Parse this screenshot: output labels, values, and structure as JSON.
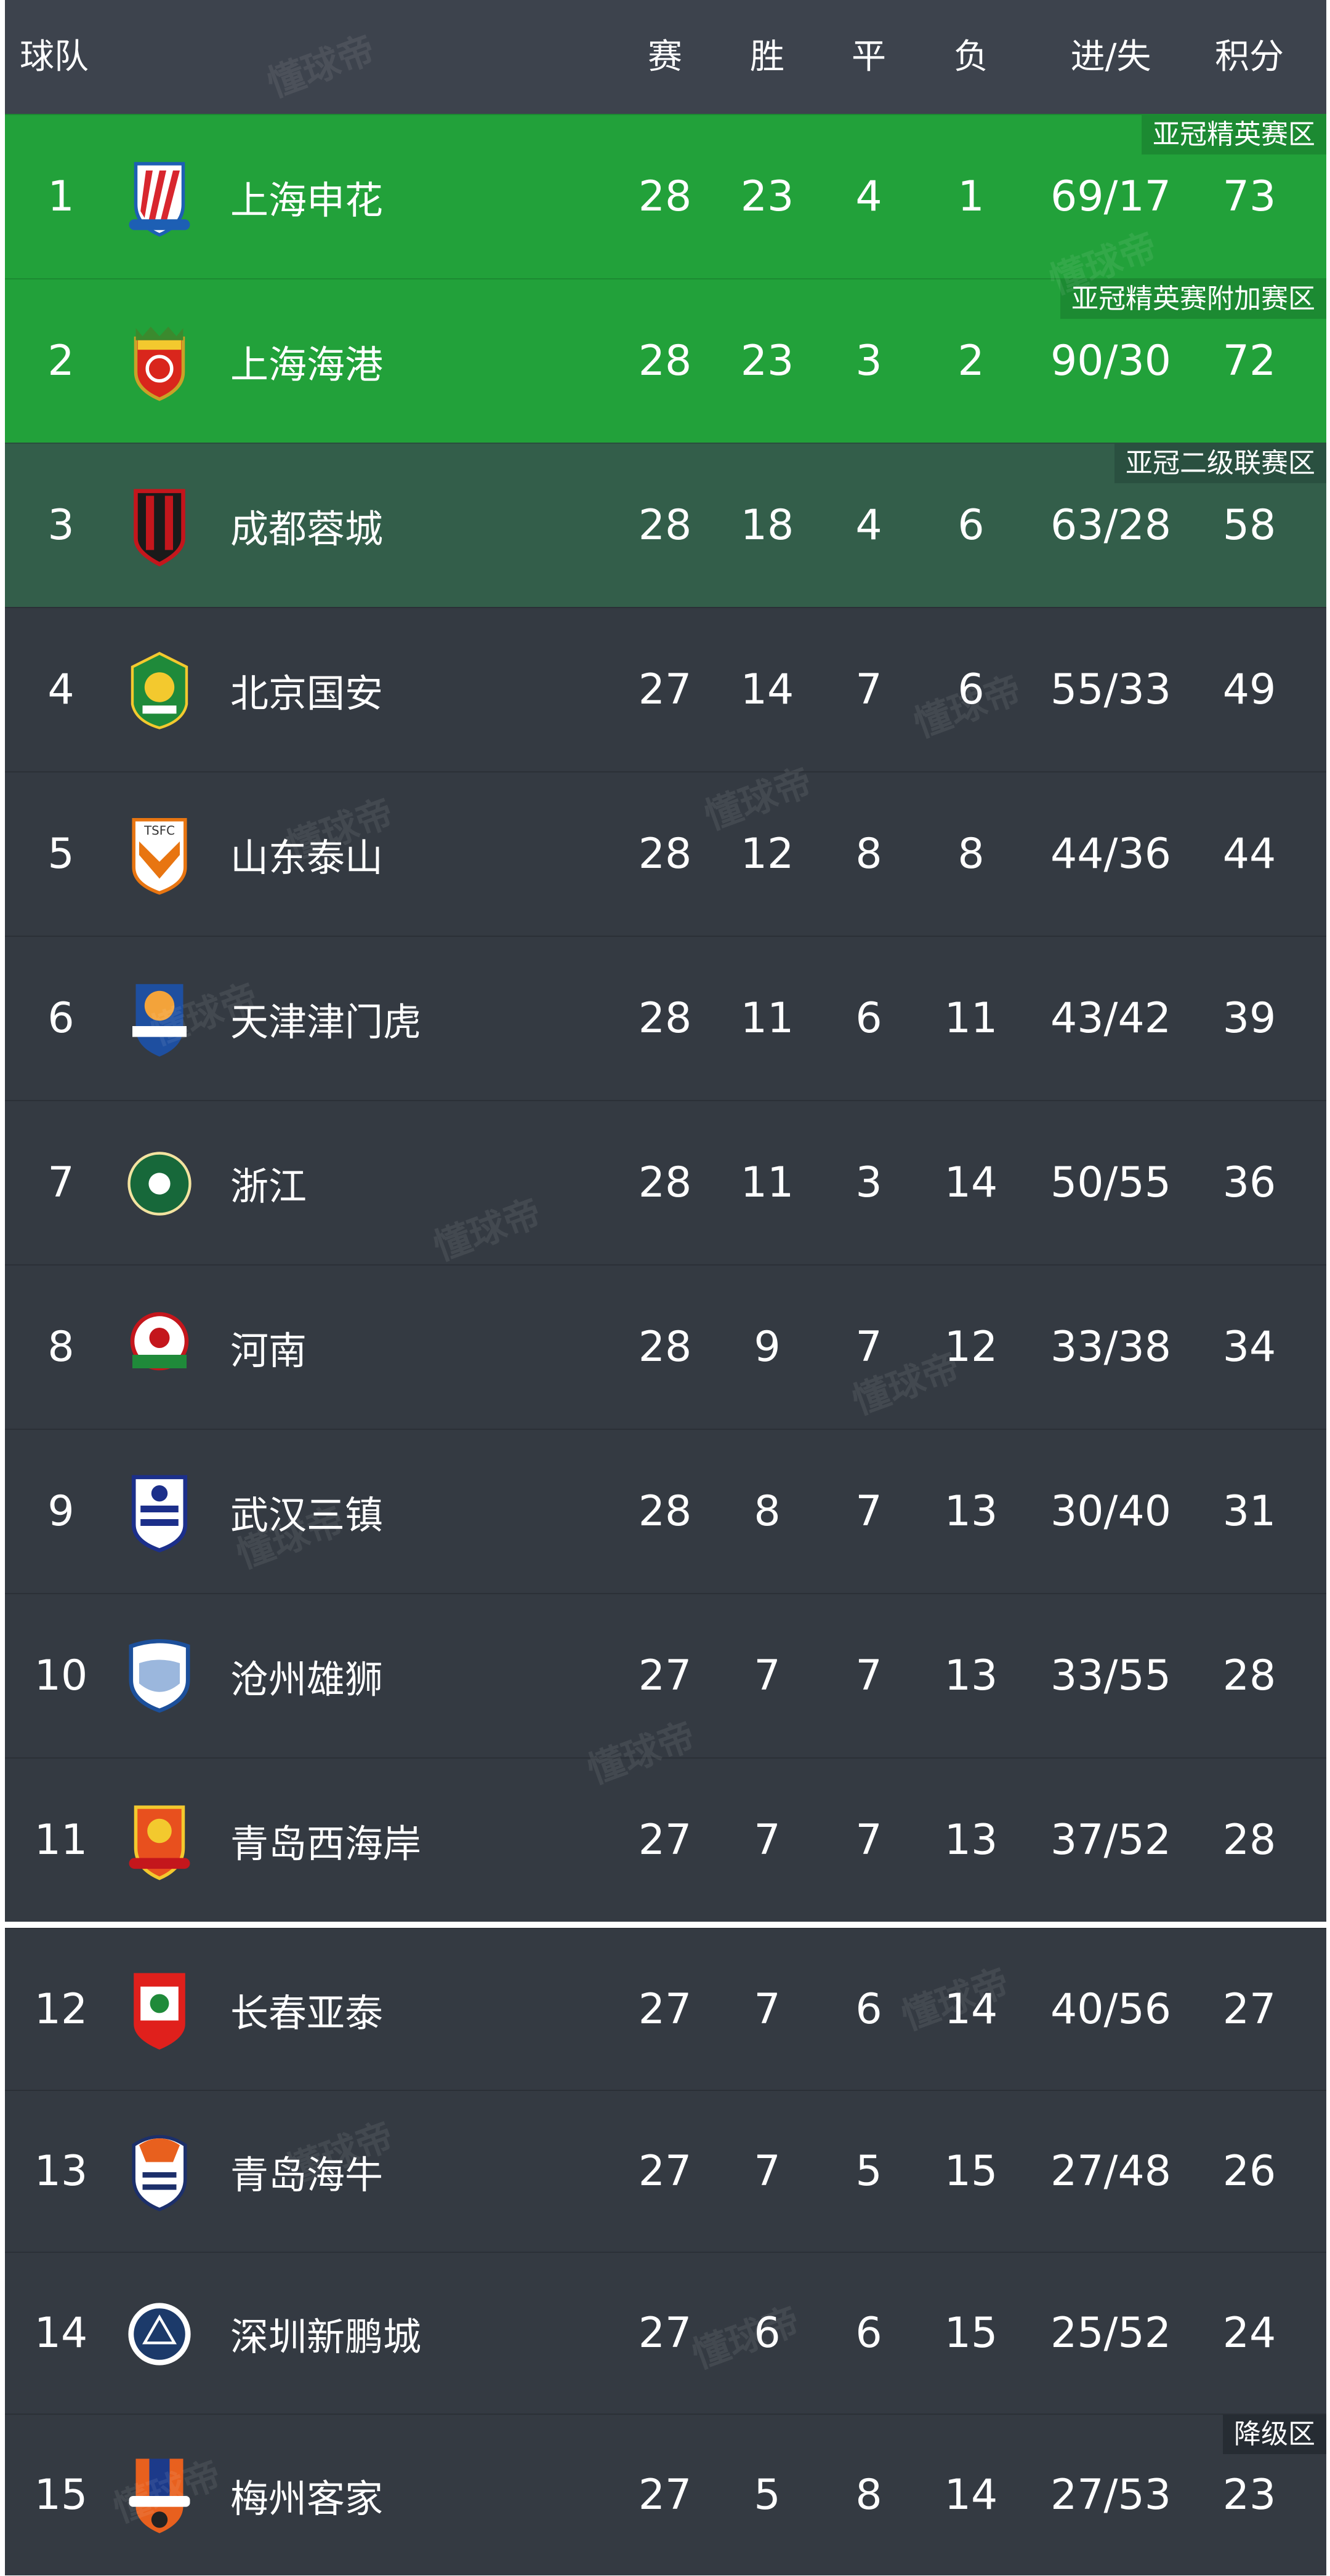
{
  "header": {
    "team": "球队",
    "played": "赛",
    "won": "胜",
    "drawn": "平",
    "lost": "负",
    "goals": "进/失",
    "points": "积分"
  },
  "watermark": "懂球帝",
  "colors": {
    "header": "#3d434d",
    "acl_elite": "#22a13a",
    "acl_two": "#335e4a",
    "default": "#343a42"
  },
  "rows": [
    {
      "rank": "1",
      "team": "上海申花",
      "played": "28",
      "won": "23",
      "drawn": "4",
      "lost": "1",
      "goals": "69/17",
      "points": "73",
      "zone": "acl",
      "badge": "亚冠精英赛区",
      "logo": "shenhua-crest"
    },
    {
      "rank": "2",
      "team": "上海海港",
      "played": "28",
      "won": "23",
      "drawn": "3",
      "lost": "2",
      "goals": "90/30",
      "points": "72",
      "zone": "acl",
      "badge": "亚冠精英赛附加赛区",
      "logo": "haigang-crest"
    },
    {
      "rank": "3",
      "team": "成都蓉城",
      "played": "28",
      "won": "18",
      "drawn": "4",
      "lost": "6",
      "goals": "63/28",
      "points": "58",
      "zone": "acl2",
      "badge": "亚冠二级联赛区",
      "logo": "chengdu-crest"
    },
    {
      "rank": "4",
      "team": "北京国安",
      "played": "27",
      "won": "14",
      "drawn": "7",
      "lost": "6",
      "goals": "55/33",
      "points": "49",
      "zone": "none",
      "logo": "guoan-crest"
    },
    {
      "rank": "5",
      "team": "山东泰山",
      "played": "28",
      "won": "12",
      "drawn": "8",
      "lost": "8",
      "goals": "44/36",
      "points": "44",
      "zone": "none",
      "logo": "taishan-crest"
    },
    {
      "rank": "6",
      "team": "天津津门虎",
      "played": "28",
      "won": "11",
      "drawn": "6",
      "lost": "11",
      "goals": "43/42",
      "points": "39",
      "zone": "none",
      "logo": "jinmen-tiger-crest"
    },
    {
      "rank": "7",
      "team": "浙江",
      "played": "28",
      "won": "11",
      "drawn": "3",
      "lost": "14",
      "goals": "50/55",
      "points": "36",
      "zone": "none",
      "logo": "zhejiang-crest"
    },
    {
      "rank": "8",
      "team": "河南",
      "played": "28",
      "won": "9",
      "drawn": "7",
      "lost": "12",
      "goals": "33/38",
      "points": "34",
      "zone": "none",
      "logo": "henan-crest"
    },
    {
      "rank": "9",
      "team": "武汉三镇",
      "played": "28",
      "won": "8",
      "drawn": "7",
      "lost": "13",
      "goals": "30/40",
      "points": "31",
      "zone": "none",
      "logo": "wuhan-crest"
    },
    {
      "rank": "10",
      "team": "沧州雄狮",
      "played": "27",
      "won": "7",
      "drawn": "7",
      "lost": "13",
      "goals": "33/55",
      "points": "28",
      "zone": "none",
      "logo": "cangzhou-crest"
    },
    {
      "rank": "11",
      "team": "青岛西海岸",
      "played": "27",
      "won": "7",
      "drawn": "7",
      "lost": "13",
      "goals": "37/52",
      "points": "28",
      "zone": "none",
      "logo": "west-coast-crest"
    },
    {
      "rank": "12",
      "team": "长春亚泰",
      "played": "27",
      "won": "7",
      "drawn": "6",
      "lost": "14",
      "goals": "40/56",
      "points": "27",
      "zone": "none",
      "logo": "yatai-crest"
    },
    {
      "rank": "13",
      "team": "青岛海牛",
      "played": "27",
      "won": "7",
      "drawn": "5",
      "lost": "15",
      "goals": "27/48",
      "points": "26",
      "zone": "none",
      "logo": "hainiu-crest"
    },
    {
      "rank": "14",
      "team": "深圳新鹏城",
      "played": "27",
      "won": "6",
      "drawn": "6",
      "lost": "15",
      "goals": "25/52",
      "points": "24",
      "zone": "none",
      "logo": "shenzhen-crest"
    },
    {
      "rank": "15",
      "team": "梅州客家",
      "played": "27",
      "won": "5",
      "drawn": "8",
      "lost": "14",
      "goals": "27/53",
      "points": "23",
      "zone": "none",
      "badge": "降级区",
      "logo": "meizhou-crest"
    }
  ]
}
